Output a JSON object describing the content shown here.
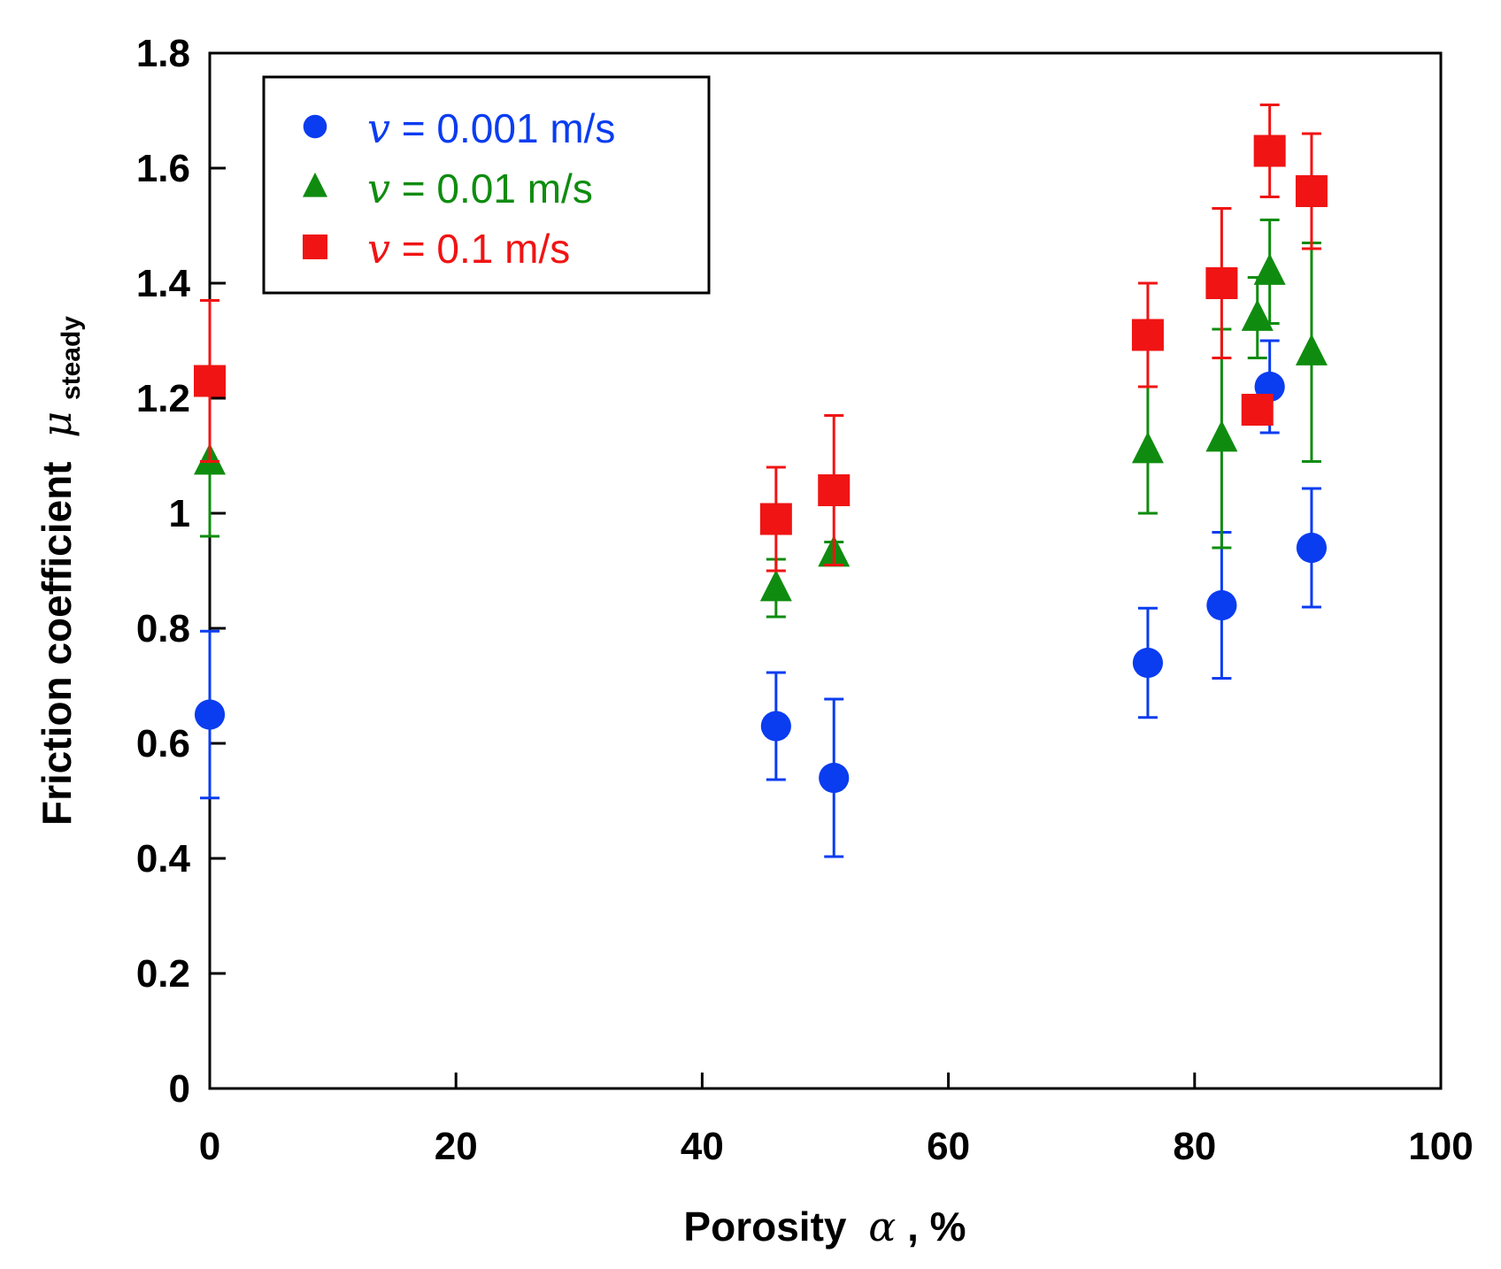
{
  "chart_data": {
    "type": "scatter",
    "title": "",
    "xlabel": {
      "main": "Porosity",
      "symbol": "α",
      "unit": ", %"
    },
    "ylabel": {
      "main": "Friction coefficient",
      "symbol": "μ",
      "subscript": "steady"
    },
    "xlim": [
      0,
      100
    ],
    "ylim": [
      0,
      1.8
    ],
    "xticks": [
      0,
      20,
      40,
      60,
      80,
      100
    ],
    "xtick_labels": [
      "0",
      "20",
      "40",
      "60",
      "80",
      "100"
    ],
    "yticks": [
      0,
      0.2,
      0.4,
      0.6,
      0.8,
      1.0,
      1.2,
      1.4,
      1.6,
      1.8
    ],
    "ytick_labels": [
      "0",
      "0.2",
      "0.4",
      "0.6",
      "0.8",
      "1",
      "1.2",
      "1.4",
      "1.6",
      "1.8"
    ],
    "grid": false,
    "legend_position": "top-left",
    "series": [
      {
        "name": "v = 0.001 m/s",
        "var": "v",
        "label_rest": " = 0.001 m/s",
        "marker": "circle",
        "color": "#0a3cf0",
        "x": [
          0,
          46,
          50.7,
          76.2,
          82.2,
          86.1,
          89.5
        ],
        "y": [
          0.65,
          0.63,
          0.54,
          0.74,
          0.84,
          1.22,
          0.94
        ],
        "err": [
          0.145,
          0.093,
          0.137,
          0.095,
          0.127,
          0.08,
          0.103
        ]
      },
      {
        "name": "v = 0.01 m/s",
        "var": "v",
        "label_rest": " = 0.01 m/s",
        "marker": "triangle",
        "color": "#0f8c0f",
        "x": [
          0,
          46,
          50.7,
          76.2,
          82.2,
          85.1,
          86.1,
          89.5
        ],
        "y": [
          1.09,
          0.87,
          0.93,
          1.11,
          1.13,
          1.34,
          1.42,
          1.28
        ],
        "err": [
          0.13,
          0.05,
          0.02,
          0.11,
          0.19,
          0.07,
          0.09,
          0.19
        ]
      },
      {
        "name": "v = 0.1 m/s",
        "var": "v",
        "label_rest": " = 0.1 m/s",
        "marker": "square",
        "color": "#f01414",
        "x": [
          0,
          46,
          50.7,
          76.2,
          82.2,
          85.1,
          86.1,
          89.5
        ],
        "y": [
          1.23,
          0.99,
          1.04,
          1.31,
          1.4,
          1.18,
          1.63,
          1.56
        ],
        "err": [
          0.14,
          0.09,
          0.13,
          0.09,
          0.13,
          0.02,
          0.08,
          0.1
        ]
      }
    ]
  }
}
